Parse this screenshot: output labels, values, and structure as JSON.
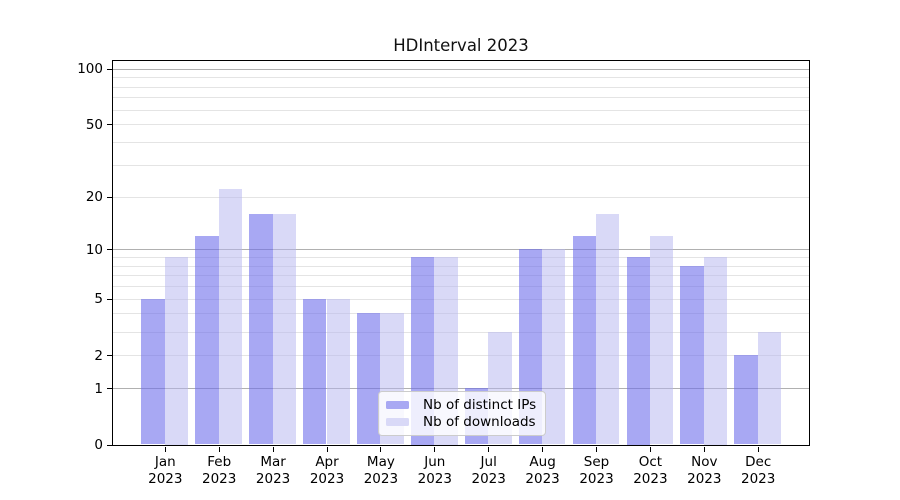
{
  "title": "HDInterval 2023",
  "chart_data": {
    "type": "bar",
    "title": "HDInterval 2023",
    "categories": [
      "Jan",
      "Feb",
      "Mar",
      "Apr",
      "May",
      "Jun",
      "Jul",
      "Aug",
      "Sep",
      "Oct",
      "Nov",
      "Dec"
    ],
    "year": "2023",
    "series": [
      {
        "name": "Nb of distinct IPs",
        "values": [
          5,
          12,
          16,
          5,
          4,
          9,
          1,
          10,
          12,
          9,
          8,
          2
        ],
        "bar_color": "rgba(110,110,235,0.60)",
        "legend_color": "#a8a8f3"
      },
      {
        "name": "Nb of downloads",
        "values": [
          9,
          22,
          16,
          5,
          4,
          9,
          3,
          10,
          16,
          12,
          9,
          3
        ],
        "bar_color": "rgba(180,180,240,0.50)",
        "legend_color": "#d9d9f7"
      }
    ],
    "xlabel": "",
    "ylabel": "",
    "yscale": "log1p",
    "ylim": [
      0,
      112
    ],
    "y_tick_labels": [
      0,
      1,
      2,
      5,
      10,
      20,
      50,
      100
    ],
    "y_major_gridlines": [
      1,
      10,
      100
    ],
    "y_minor_gridlines": [
      2,
      3,
      4,
      5,
      6,
      7,
      8,
      9,
      20,
      30,
      40,
      50,
      60,
      70,
      80,
      90
    ],
    "grid": {
      "major_color": "#b0b0b0",
      "minor_color": "#e4e4e4",
      "enabled": true
    },
    "legend_position": "lower center"
  }
}
